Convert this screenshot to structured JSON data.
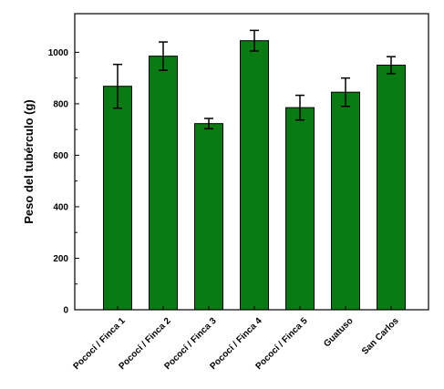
{
  "chart_data": {
    "type": "bar",
    "title": "",
    "xlabel": "",
    "ylabel": "Peso del tubérculo (g)",
    "ylim": [
      0,
      1150
    ],
    "yticks": [
      0,
      200,
      400,
      600,
      800,
      1000
    ],
    "grid": false,
    "legend": "none",
    "bar_color": "#0a7a12",
    "categories": [
      "Pococí / Finca 1",
      "Pococí / Finca 2",
      "Pococí / Finca 3",
      "Pococí / Finca 4",
      "Pococí / Finca 5",
      "Guatuso",
      "San Carlos"
    ],
    "values": [
      868,
      985,
      723,
      1045,
      785,
      845,
      950
    ],
    "errors": [
      85,
      55,
      20,
      40,
      48,
      55,
      33
    ]
  }
}
